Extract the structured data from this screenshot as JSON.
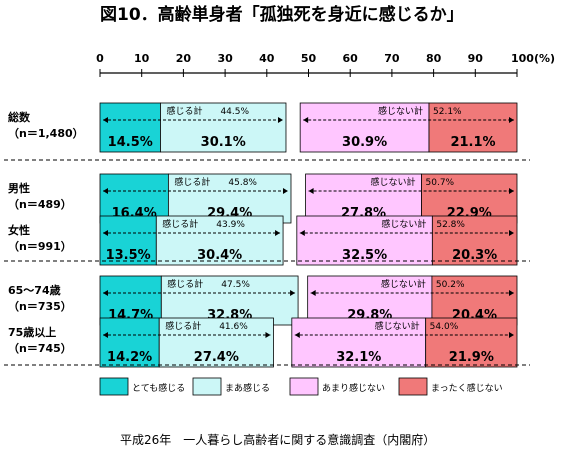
{
  "chart_data": {
    "type": "bar",
    "title": "図10．高齢単身者「孤独死を身近に感じるか」",
    "x_ticks": [
      "0",
      "10",
      "20",
      "30",
      "40",
      "50",
      "60",
      "70",
      "80",
      "90",
      "100(%)"
    ],
    "xlim": [
      0,
      100
    ],
    "legend_position": "bottom",
    "categories": [
      {
        "label": "総数",
        "n": "（n＝1,480）"
      },
      {
        "label": "男性",
        "n": "（n＝489）"
      },
      {
        "label": "女性",
        "n": "（n＝991）"
      },
      {
        "label": "65～74歳",
        "n": "（n＝735）"
      },
      {
        "label": "75歳以上",
        "n": "（n＝745）"
      }
    ],
    "series": [
      {
        "name": "とても感じる",
        "color": "#19d3d6",
        "values": [
          14.5,
          16.4,
          13.5,
          14.7,
          14.2
        ],
        "labels": [
          "14.5%",
          "16.4%",
          "13.5%",
          "14.7%",
          "14.2%"
        ]
      },
      {
        "name": "まあ感じる",
        "color": "#ccf7f7",
        "values": [
          30.1,
          29.4,
          30.4,
          32.8,
          27.4
        ],
        "labels": [
          "30.1%",
          "29.4%",
          "30.4%",
          "32.8%",
          "27.4%"
        ]
      },
      {
        "name": "あまり感じない",
        "color": "#ffc6ff",
        "values": [
          30.9,
          27.8,
          32.5,
          29.8,
          32.1
        ],
        "labels": [
          "30.9%",
          "27.8%",
          "32.5%",
          "29.8%",
          "32.1%"
        ]
      },
      {
        "name": "まったく感じない",
        "color": "#f07979",
        "values": [
          21.1,
          22.9,
          20.3,
          20.4,
          21.9
        ],
        "labels": [
          "21.1%",
          "22.9%",
          "20.3%",
          "20.4%",
          "21.9%"
        ]
      }
    ],
    "feel_totals": [
      {
        "label": "感じる計",
        "value": "44.5%"
      },
      {
        "label": "感じる計",
        "value": "45.8%"
      },
      {
        "label": "感じる計",
        "value": "43.9%"
      },
      {
        "label": "感じる計",
        "value": "47.5%"
      },
      {
        "label": "感じる計",
        "value": "41.6%"
      }
    ],
    "not_feel_totals": [
      {
        "label": "感じない計",
        "value": "52.1%"
      },
      {
        "label": "感じない計",
        "value": "50.7%"
      },
      {
        "label": "感じない計",
        "value": "52.8%"
      },
      {
        "label": "感じない計",
        "value": "50.2%"
      },
      {
        "label": "感じない計",
        "value": "54.0%"
      }
    ],
    "source": "平成26年　一人暮らし高齢者に関する意識調査（内閣府）"
  }
}
